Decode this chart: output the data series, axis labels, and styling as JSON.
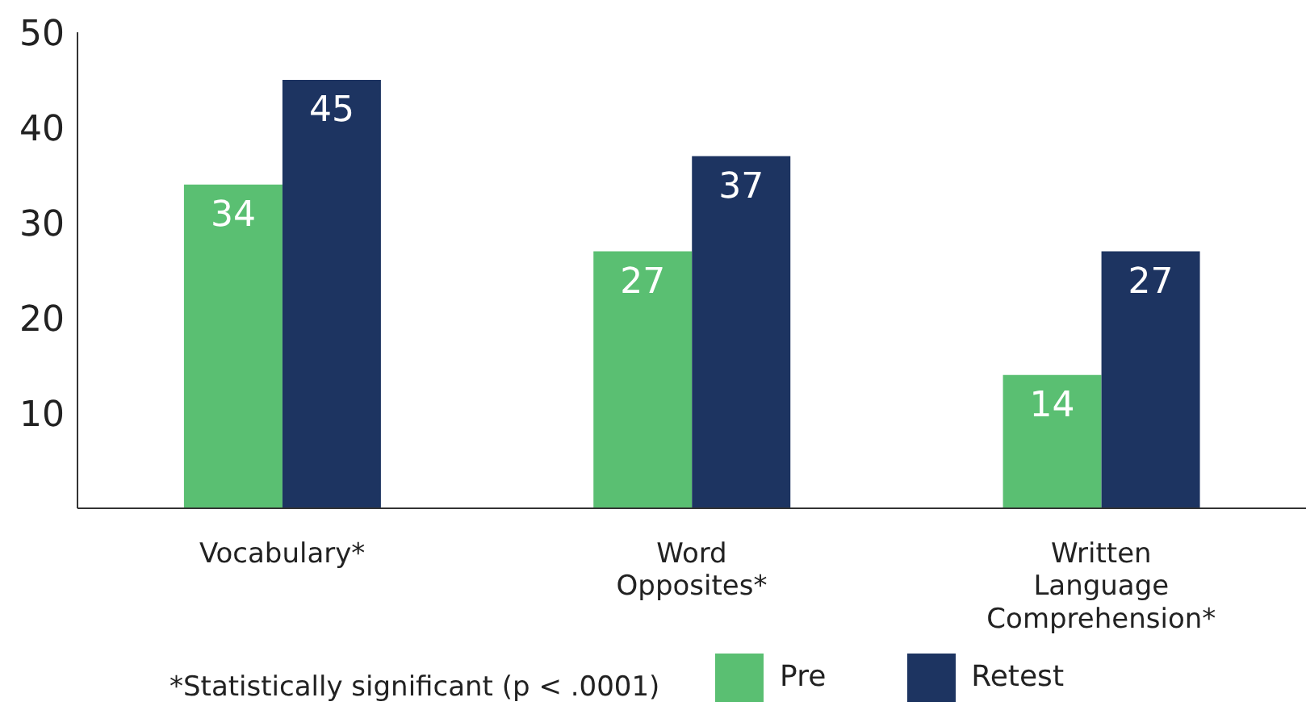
{
  "chart_data": {
    "type": "bar",
    "categories": [
      "Vocabulary*",
      "Word Opposites*",
      "Written Language Comprehension*"
    ],
    "series": [
      {
        "name": "Pre",
        "color": "#5abf72",
        "values": [
          34,
          27,
          14
        ]
      },
      {
        "name": "Retest",
        "color": "#1d3461",
        "values": [
          45,
          37,
          27
        ]
      }
    ],
    "ylim": [
      0,
      50
    ],
    "yticks": [
      10,
      20,
      30,
      40,
      50
    ],
    "grid": false,
    "legend": "bottom right",
    "data_labels": true,
    "annotations": [
      "*Statistically significant (p < .0001)"
    ]
  }
}
